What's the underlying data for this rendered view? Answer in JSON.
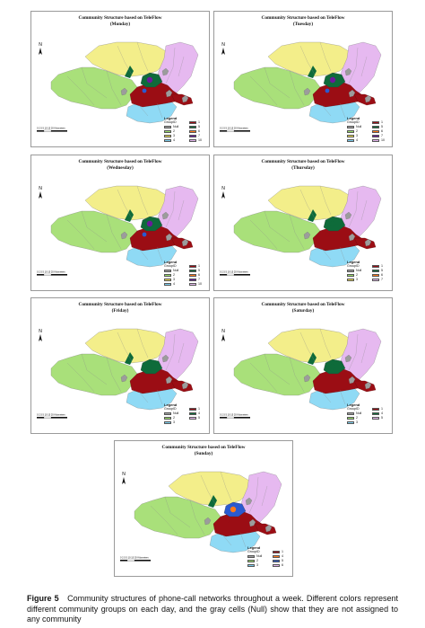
{
  "panels": [
    {
      "title": "Community Structure based on TeleFlow",
      "day": "(Monday)",
      "legend": [
        "GroupID",
        "1",
        "Null",
        "5",
        "2",
        "6",
        "3",
        "7",
        "4",
        "10"
      ],
      "colors": [
        "",
        "#9b0d14",
        "#a0a0a0",
        "#0e6b3a",
        "#9be06a",
        "#ff7a1a",
        "#f0e050",
        "#6a1a9a",
        "#7ed0f0",
        "#e7b8f0"
      ]
    },
    {
      "title": "Community Structure based on TeleFlow",
      "day": "(Tuesday)",
      "legend": [
        "GroupID",
        "1",
        "Null",
        "5",
        "2",
        "6",
        "3",
        "7",
        "4",
        "10"
      ],
      "colors": [
        "",
        "#9b0d14",
        "#a0a0a0",
        "#0e6b3a",
        "#9be06a",
        "#ff7a1a",
        "#f0e050",
        "#6a1a9a",
        "#7ed0f0",
        "#e7b8f0"
      ]
    },
    {
      "title": "Community Structure based on TeleFlow",
      "day": "(Wednesday)",
      "legend": [
        "GroupID",
        "1",
        "Null",
        "5",
        "2",
        "6",
        "3",
        "7",
        "4",
        "10"
      ],
      "colors": [
        "",
        "#9b0d14",
        "#a0a0a0",
        "#0e6b3a",
        "#9be06a",
        "#ff7a1a",
        "#f0e050",
        "#6a1a9a",
        "#7ed0f0",
        "#e7b8f0"
      ]
    },
    {
      "title": "Community Structure based on TeleFlow",
      "day": "(Thursday)",
      "legend": [
        "GroupID",
        "1",
        "Null",
        "5",
        "2",
        "6",
        "3",
        "7"
      ],
      "colors": [
        "",
        "#9b0d14",
        "#a0a0a0",
        "#0e6b3a",
        "#9be06a",
        "#ff7a1a",
        "#f0e050",
        "#e7b8f0"
      ]
    },
    {
      "title": "Community Structure based on TeleFlow",
      "day": "(Friday)",
      "legend": [
        "GroupID",
        "1",
        "Null",
        "4",
        "2",
        "5",
        "3"
      ],
      "colors": [
        "",
        "#9b0d14",
        "#a0a0a0",
        "#0e6b3a",
        "#9be06a",
        "#e7b8f0",
        "#7ed0f0"
      ]
    },
    {
      "title": "Community Structure based on TeleFlow",
      "day": "(Saturday)",
      "legend": [
        "GroupID",
        "1",
        "Null",
        "4",
        "2",
        "5",
        "3"
      ],
      "colors": [
        "",
        "#9b0d14",
        "#a0a0a0",
        "#0e6b3a",
        "#9be06a",
        "#e7b8f0",
        "#7ed0f0"
      ]
    },
    {
      "title": "Community Structure based on TeleFlow",
      "day": "(Sunday)",
      "legend": [
        "GroupID",
        "1",
        "Null",
        "4",
        "2",
        "5",
        "3",
        "6"
      ],
      "colors": [
        "",
        "#9b0d14",
        "#a0a0a0",
        "#ff7a1a",
        "#9be06a",
        "#2a5ad0",
        "#7ed0f0",
        "#e7b8f0"
      ]
    }
  ],
  "north_label": "N",
  "scale_label": "0 2.5 5    10    15    20 Kilometers",
  "legend_title": "Legend",
  "caption": {
    "label": "Figure 5",
    "text": "Community structures of phone-call networks throughout a week. Different colors represent different community groups on each day, and the gray cells (Null) show that they are not assigned to any community"
  }
}
